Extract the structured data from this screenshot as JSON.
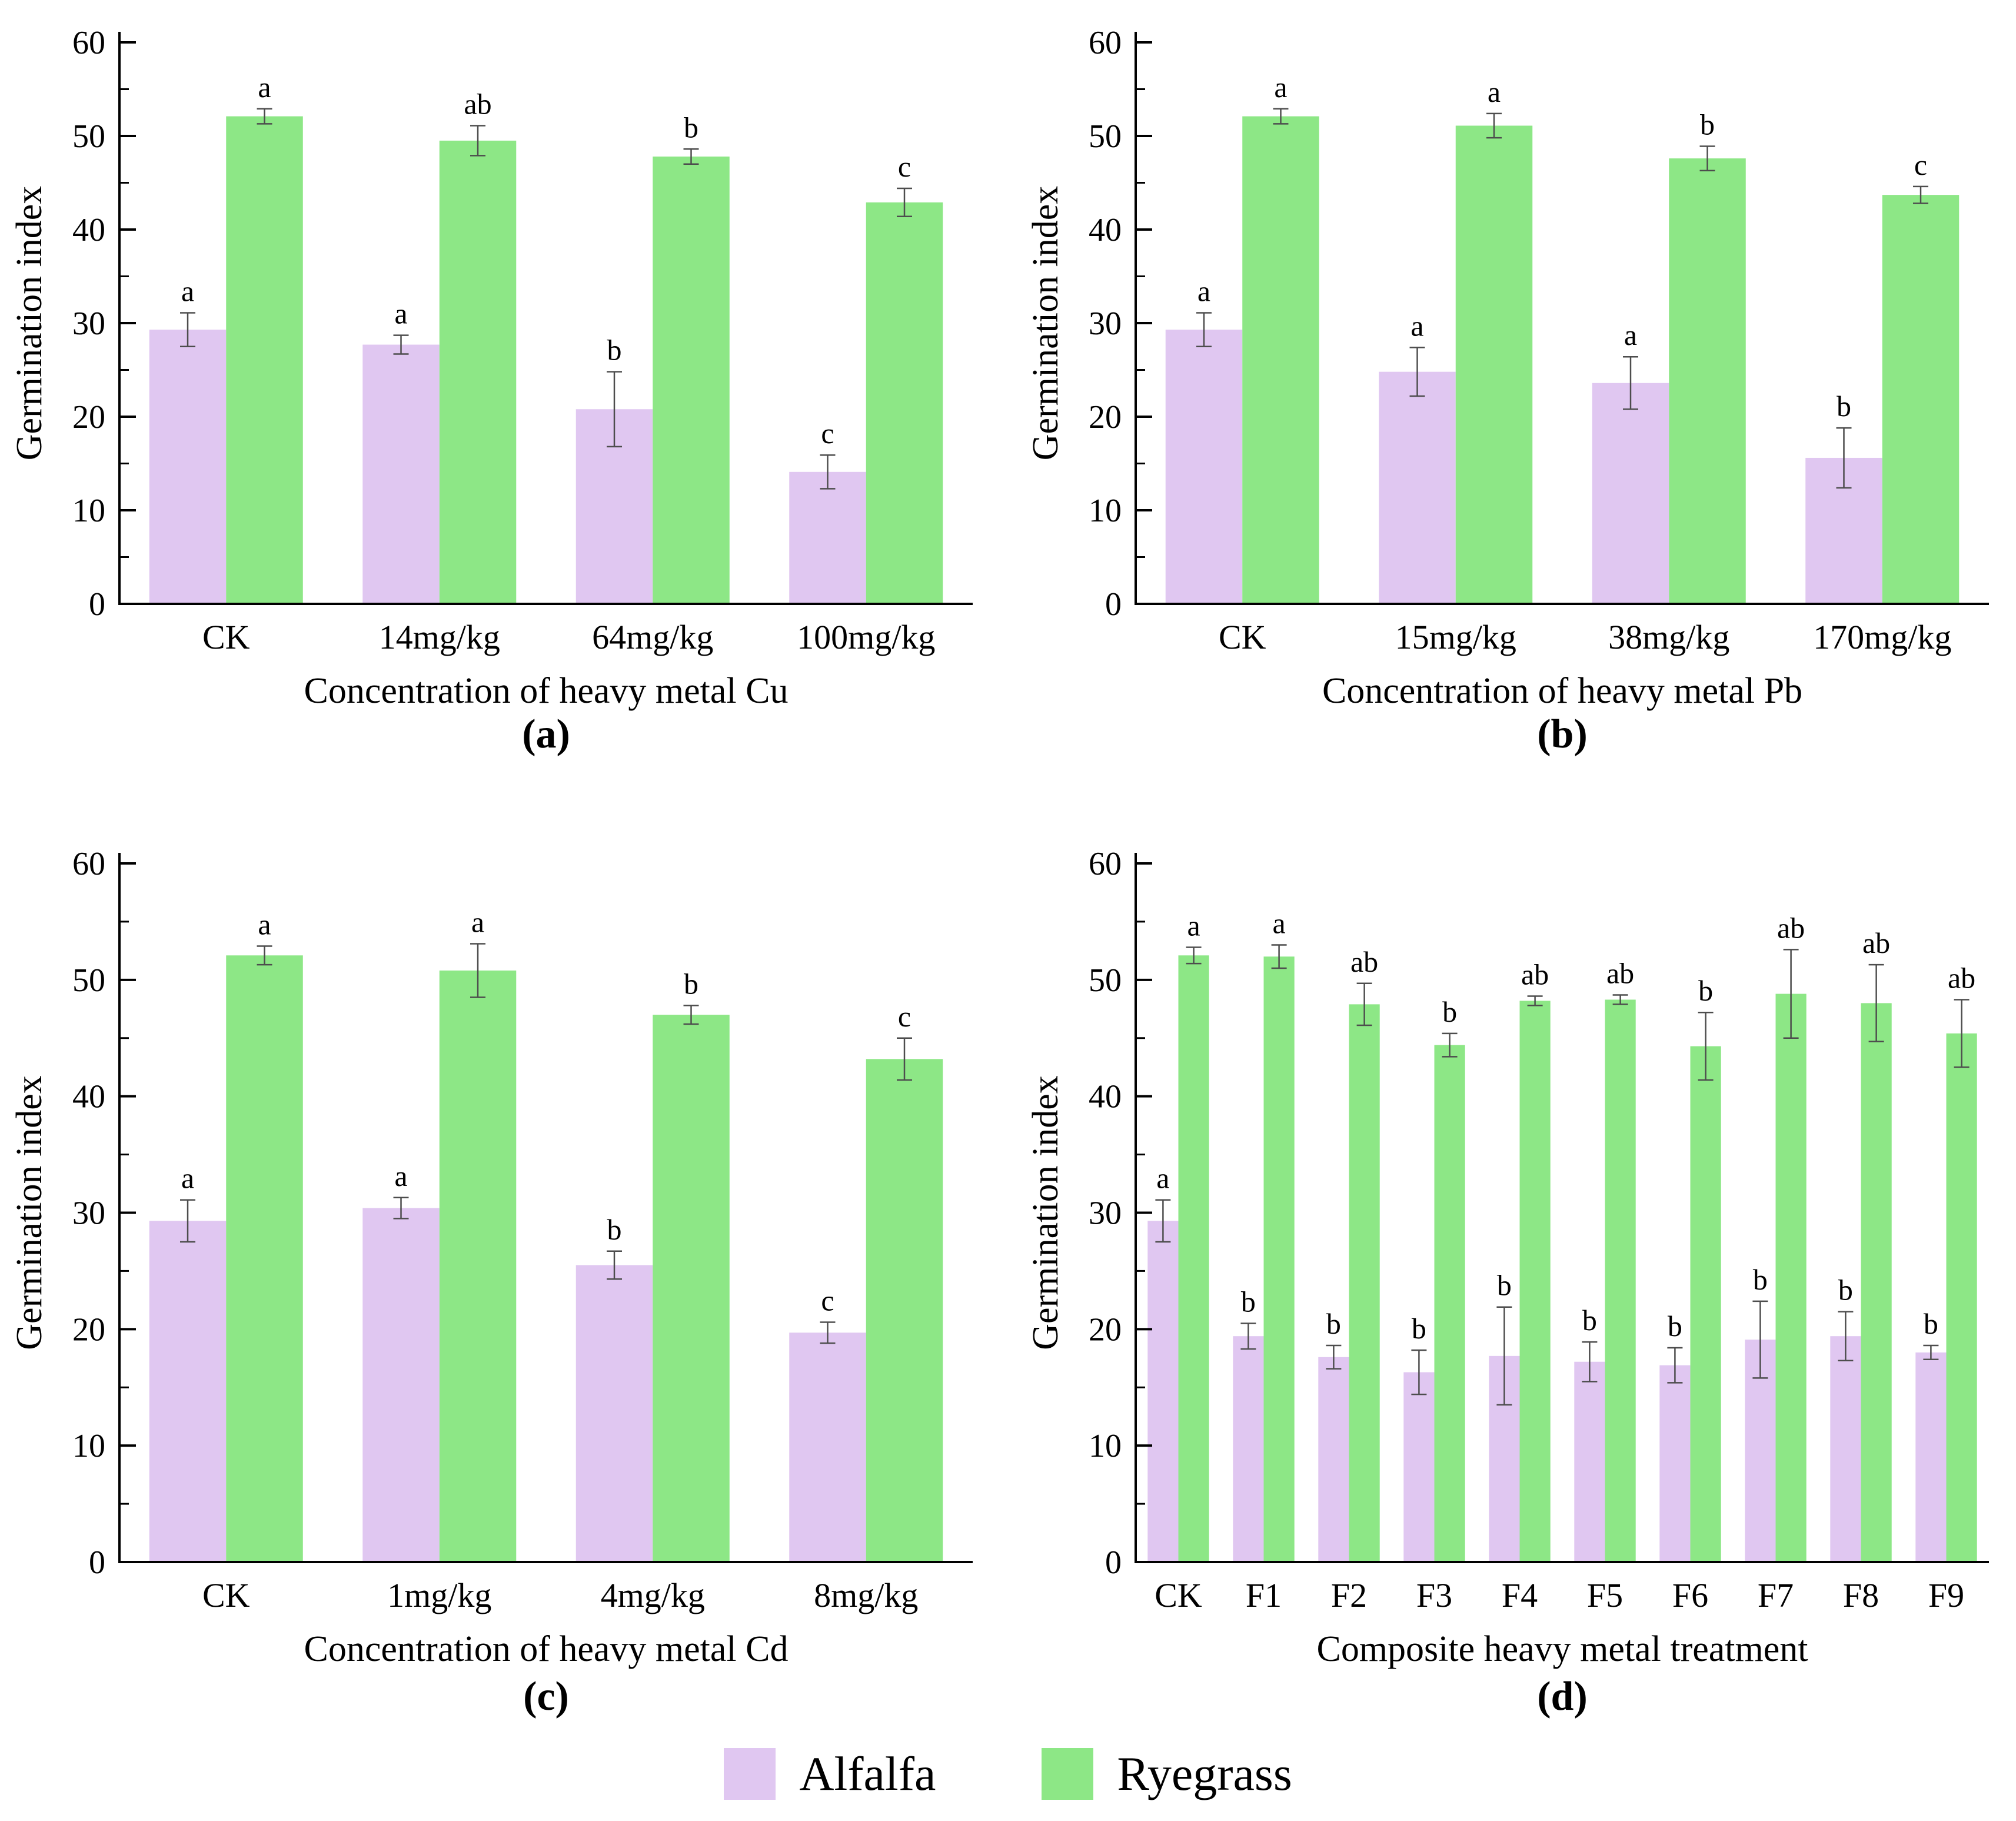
{
  "figure": {
    "background": "#ffffff",
    "axis_color": "#000000",
    "error_bar_color": "#4d4d4d",
    "text_color": "#000000"
  },
  "legend": {
    "position": "bottom-center",
    "items": [
      {
        "label": "Alfalfa",
        "color": "#e0c7f1"
      },
      {
        "label": "Ryegrass",
        "color": "#8de786"
      }
    ]
  },
  "chart_data": [
    {
      "type": "bar",
      "panel": "a",
      "caption": "(a)",
      "xlabel": "Concentration of heavy metal Cu",
      "ylabel": "Germination index",
      "ylim": [
        0,
        60
      ],
      "ytick_interval": 10,
      "ytick_minor_interval": 5,
      "grid": false,
      "categories": [
        "CK",
        "14mg/kg",
        "64mg/kg",
        "100mg/kg"
      ],
      "series": [
        {
          "name": "Alfalfa",
          "color": "#e0c7f1",
          "values": [
            29.3,
            27.7,
            20.8,
            14.1
          ],
          "errors": [
            1.8,
            1.0,
            4.0,
            1.8
          ],
          "letters": [
            "a",
            "a",
            "b",
            "c"
          ]
        },
        {
          "name": "Ryegrass",
          "color": "#8de786",
          "values": [
            52.1,
            49.5,
            47.8,
            42.9
          ],
          "errors": [
            0.8,
            1.6,
            0.8,
            1.5
          ],
          "letters": [
            "a",
            "ab",
            "b",
            "c"
          ]
        }
      ]
    },
    {
      "type": "bar",
      "panel": "b",
      "caption": "(b)",
      "xlabel": "Concentration of heavy metal Pb",
      "ylabel": "Germination index",
      "ylim": [
        0,
        60
      ],
      "ytick_interval": 10,
      "ytick_minor_interval": 5,
      "grid": false,
      "categories": [
        "CK",
        "15mg/kg",
        "38mg/kg",
        "170mg/kg"
      ],
      "series": [
        {
          "name": "Alfalfa",
          "color": "#e0c7f1",
          "values": [
            29.3,
            24.8,
            23.6,
            15.6
          ],
          "errors": [
            1.8,
            2.6,
            2.8,
            3.2
          ],
          "letters": [
            "a",
            "a",
            "a",
            "b"
          ]
        },
        {
          "name": "Ryegrass",
          "color": "#8de786",
          "values": [
            52.1,
            51.1,
            47.6,
            43.7
          ],
          "errors": [
            0.8,
            1.3,
            1.3,
            0.9
          ],
          "letters": [
            "a",
            "a",
            "b",
            "c"
          ]
        }
      ]
    },
    {
      "type": "bar",
      "panel": "c",
      "caption": "(c)",
      "xlabel": "Concentration of heavy metal Cd",
      "ylabel": "Germination index",
      "ylim": [
        0,
        60
      ],
      "ytick_interval": 10,
      "ytick_minor_interval": 5,
      "grid": false,
      "categories": [
        "CK",
        "1mg/kg",
        "4mg/kg",
        "8mg/kg"
      ],
      "series": [
        {
          "name": "Alfalfa",
          "color": "#e0c7f1",
          "values": [
            29.3,
            30.4,
            25.5,
            19.7
          ],
          "errors": [
            1.8,
            0.9,
            1.2,
            0.9
          ],
          "letters": [
            "a",
            "a",
            "b",
            "c"
          ]
        },
        {
          "name": "Ryegrass",
          "color": "#8de786",
          "values": [
            52.1,
            50.8,
            47.0,
            43.2
          ],
          "errors": [
            0.8,
            2.3,
            0.8,
            1.8
          ],
          "letters": [
            "a",
            "a",
            "b",
            "c"
          ]
        }
      ]
    },
    {
      "type": "bar",
      "panel": "d",
      "caption": "(d)",
      "xlabel": "Composite heavy metal treatment",
      "ylabel": "Germination index",
      "ylim": [
        0,
        60
      ],
      "ytick_interval": 10,
      "ytick_minor_interval": 5,
      "grid": false,
      "categories": [
        "CK",
        "F1",
        "F2",
        "F3",
        "F4",
        "F5",
        "F6",
        "F7",
        "F8",
        "F9"
      ],
      "series": [
        {
          "name": "Alfalfa",
          "color": "#e0c7f1",
          "values": [
            29.3,
            19.4,
            17.6,
            16.3,
            17.7,
            17.2,
            16.9,
            19.1,
            19.4,
            18.0
          ],
          "errors": [
            1.8,
            1.1,
            1.0,
            1.9,
            4.2,
            1.7,
            1.5,
            3.3,
            2.1,
            0.6
          ],
          "letters": [
            "a",
            "b",
            "b",
            "b",
            "b",
            "b",
            "b",
            "b",
            "b",
            "b"
          ]
        },
        {
          "name": "Ryegrass",
          "color": "#8de786",
          "values": [
            52.1,
            52.0,
            47.9,
            44.4,
            48.2,
            48.3,
            44.3,
            48.8,
            48.0,
            45.4
          ],
          "errors": [
            0.7,
            1.0,
            1.8,
            1.0,
            0.4,
            0.4,
            2.9,
            3.8,
            3.3,
            2.9
          ],
          "letters": [
            "a",
            "a",
            "ab",
            "b",
            "ab",
            "ab",
            "b",
            "ab",
            "ab",
            "ab"
          ]
        }
      ]
    }
  ]
}
